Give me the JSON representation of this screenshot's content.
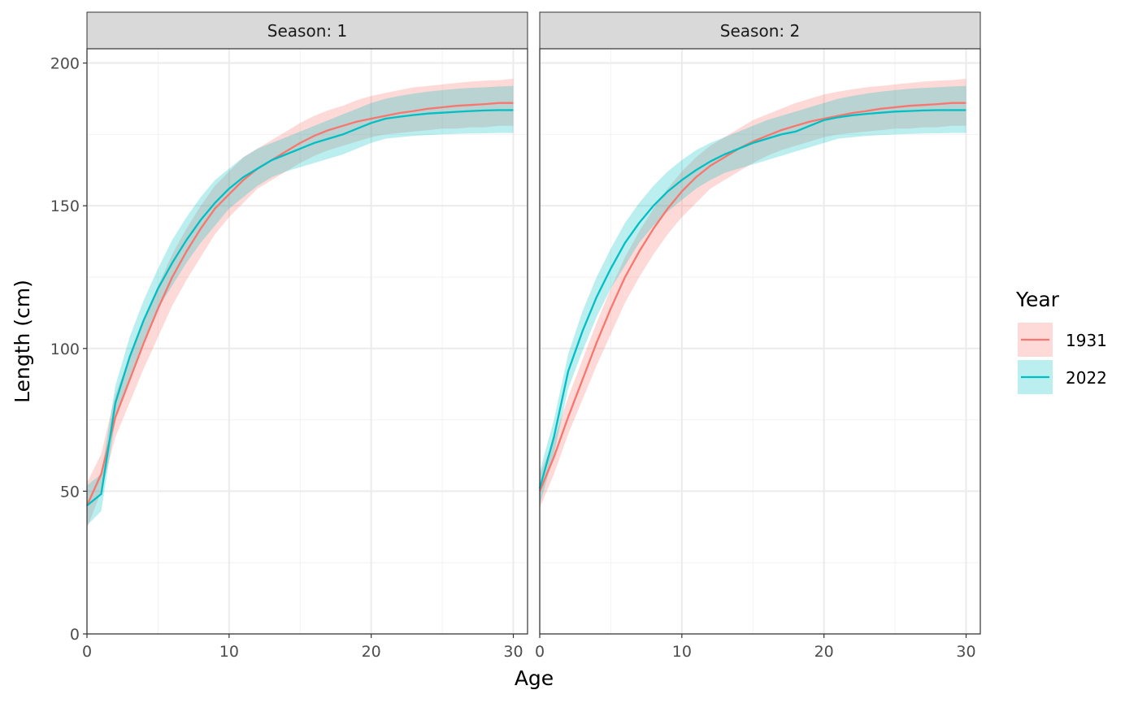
{
  "chart_data": {
    "type": "line",
    "xlabel": "Age",
    "ylabel": "Length (cm)",
    "xlim": [
      0,
      31
    ],
    "ylim": [
      0,
      205
    ],
    "x_ticks": [
      0,
      10,
      20,
      30
    ],
    "y_ticks": [
      0,
      50,
      100,
      150,
      200
    ],
    "grid": true,
    "legend": {
      "title": "Year",
      "placement": "right"
    },
    "series_colors": {
      "1931": "#F8766D",
      "2022": "#00BFC4"
    },
    "x": [
      0,
      1,
      2,
      3,
      4,
      5,
      6,
      7,
      8,
      9,
      10,
      11,
      12,
      13,
      14,
      15,
      16,
      17,
      18,
      19,
      20,
      21,
      22,
      23,
      24,
      25,
      26,
      27,
      28,
      29,
      30
    ],
    "panels": [
      {
        "strip": "Season: 1",
        "series": [
          {
            "name": "1931",
            "values": [
              45,
              56,
              76,
              89,
              102,
              114,
              125,
              134,
              142,
              149,
              154,
              159,
              163,
              166,
              169,
              172,
              174.5,
              176.5,
              178,
              179.5,
              180.5,
              181.5,
              182.5,
              183.2,
              184,
              184.5,
              185,
              185.3,
              185.6,
              186,
              186
            ],
            "lower": [
              37,
              50,
              69,
              81,
              93,
              104,
              115,
              124,
              132,
              140,
              146,
              151,
              156,
              159,
              162,
              165,
              167.5,
              169.5,
              171,
              172.5,
              174,
              175,
              175.5,
              176,
              176.5,
              177,
              177,
              177.5,
              177.5,
              178,
              178
            ],
            "upper": [
              53,
              63,
              84,
              97,
              110,
              122,
              133,
              142,
              150,
              157,
              162,
              167,
              170,
              173,
              176,
              179,
              181.5,
              183.5,
              185,
              187,
              188.5,
              189.5,
              190.5,
              191.5,
              192,
              192.5,
              193,
              193.5,
              193.8,
              194,
              194.5
            ]
          },
          {
            "name": "2022",
            "values": [
              45,
              49,
              81,
              97,
              110,
              121,
              130,
              138,
              145,
              151,
              156,
              160,
              163,
              166,
              168,
              170,
              172,
              173.5,
              175,
              177,
              179,
              180.5,
              181.2,
              181.8,
              182.3,
              182.6,
              182.9,
              183.2,
              183.4,
              183.5,
              183.5
            ],
            "lower": [
              38,
              43,
              75,
              90,
              103,
              114,
              122,
              130,
              137,
              143,
              149,
              153,
              157,
              160,
              162,
              163.5,
              165,
              166.5,
              168,
              170,
              172,
              173.5,
              174,
              174.5,
              174.8,
              175,
              175.2,
              175.3,
              175.4,
              175.5,
              175.5
            ],
            "upper": [
              52,
              56,
              87,
              104,
              117,
              128,
              138,
              146,
              153,
              159,
              163,
              167,
              170,
              172,
              174,
              176,
              178,
              180,
              182,
              184,
              186,
              187.5,
              188.5,
              189.3,
              190,
              190.5,
              191,
              191.3,
              191.5,
              191.8,
              192
            ]
          }
        ]
      },
      {
        "strip": "Season: 2",
        "series": [
          {
            "name": "1931",
            "values": [
              50,
              62,
              76,
              89,
              102,
              114,
              125,
              134,
              142,
              149,
              155,
              160,
              164,
              167,
              170,
              172.5,
              174.5,
              176.5,
              178,
              179.5,
              180.5,
              181.5,
              182.5,
              183.2,
              184,
              184.5,
              185,
              185.3,
              185.6,
              186,
              186
            ],
            "lower": [
              44,
              56,
              70,
              82,
              94,
              105,
              116,
              125,
              133,
              140,
              146,
              151,
              156,
              159,
              162,
              165,
              167.5,
              169.5,
              171,
              172.5,
              174,
              175,
              175.5,
              176,
              176.5,
              177,
              177,
              177.5,
              177.5,
              178,
              178
            ],
            "upper": [
              56,
              68,
              83,
              96,
              109,
              121,
              132,
              141,
              149,
              156,
              162,
              167,
              171,
              174,
              177,
              180,
              182,
              184,
              186,
              187.5,
              189,
              190,
              190.8,
              191.5,
              192,
              192.5,
              193,
              193.5,
              193.8,
              194,
              194.5
            ]
          },
          {
            "name": "2022",
            "values": [
              51,
              69,
              92,
              106,
              118,
              128,
              137,
              144,
              150,
              155,
              159,
              162.5,
              165.5,
              168,
              170,
              172,
              173.5,
              175,
              176,
              178,
              180,
              181,
              181.7,
              182.2,
              182.6,
              183,
              183.2,
              183.4,
              183.5,
              183.5,
              183.5
            ],
            "lower": [
              45,
              63,
              86,
              99,
              111,
              121,
              129,
              137,
              143,
              148,
              152,
              156,
              159,
              161.5,
              163,
              164.5,
              166,
              167.5,
              169,
              170.5,
              172,
              173.5,
              174,
              174.5,
              174.8,
              175,
              175.2,
              175.3,
              175.4,
              175.5,
              175.5
            ],
            "upper": [
              57,
              75,
              98,
              113,
              125,
              135,
              144,
              151,
              157,
              162,
              166,
              169.5,
              172,
              174,
              176,
              178,
              180,
              181.5,
              183,
              184.5,
              186,
              187.5,
              188.5,
              189.3,
              190,
              190.5,
              191,
              191.3,
              191.5,
              191.8,
              192
            ]
          }
        ]
      }
    ]
  }
}
